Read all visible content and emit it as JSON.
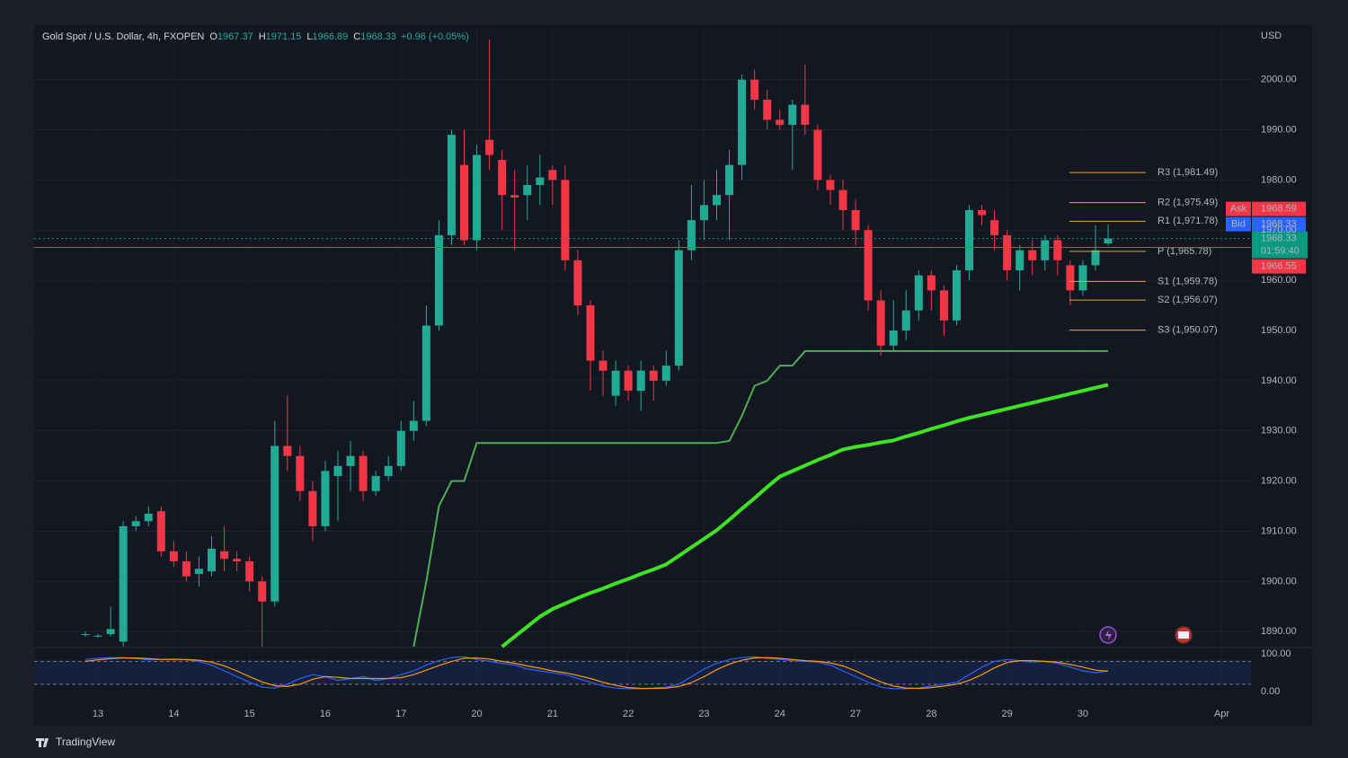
{
  "chart_data": {
    "type": "candlestick",
    "title": "Gold Spot / U.S. Dollar, 4h, FXOPEN",
    "ohlc_header": [
      {
        "label": "O",
        "value": "1967.37"
      },
      {
        "label": "H",
        "value": "1971.15"
      },
      {
        "label": "L",
        "value": "1966.89"
      },
      {
        "label": "C",
        "value": "1968.33"
      }
    ],
    "change": "+0.96 (+0.05%)",
    "currency": "USD",
    "categories": [
      null,
      "13",
      null,
      null,
      null,
      null,
      null,
      "14",
      null,
      null,
      null,
      null,
      null,
      "15",
      null,
      null,
      null,
      null,
      null,
      "16",
      null,
      null,
      null,
      null,
      null,
      "17",
      null,
      null,
      null,
      null,
      null,
      "20",
      null,
      null,
      null,
      null,
      null,
      "21",
      null,
      null,
      null,
      null,
      null,
      "22",
      null,
      null,
      null,
      null,
      null,
      "23",
      null,
      null,
      null,
      null,
      null,
      "24",
      null,
      null,
      null,
      null,
      null,
      "27",
      null,
      null,
      null,
      null,
      null,
      "28",
      null,
      null,
      null,
      null,
      null,
      "29",
      null,
      null,
      null,
      null,
      null,
      "30",
      null,
      null,
      null,
      null,
      null,
      null,
      null,
      null,
      null,
      null,
      "Apr"
    ],
    "open": [
      1889.5,
      1889,
      1889.5,
      1888,
      1911,
      1912,
      1914,
      1906,
      1904,
      1901.5,
      1902,
      1906,
      1904.5,
      1904,
      1900,
      1896,
      1927,
      1925,
      1918,
      1911,
      1921,
      1923,
      1925,
      1918,
      1921,
      1923,
      1930,
      1932,
      1951,
      1969,
      1983,
      1968,
      1988,
      1984,
      1977,
      1977,
      1979,
      1982,
      1980,
      1964,
      1955,
      1944,
      1937,
      1942,
      1938,
      1942,
      1940,
      1943,
      1966,
      1972,
      1975,
      1977,
      1983,
      2000,
      1996,
      1992,
      1991,
      1995,
      1990,
      1980,
      1978,
      1974,
      1970,
      1956,
      1947,
      1950,
      1954,
      1961,
      1958,
      1952,
      1962,
      1974,
      1972,
      1969,
      1962,
      1966,
      1964,
      1968,
      1963,
      1958,
      1963,
      1967.37,
      null,
      null,
      null,
      null,
      null,
      null,
      null,
      null,
      null
    ],
    "high": [
      1890,
      1889.5,
      1895,
      1912,
      1913,
      1915,
      1915,
      1908,
      1906,
      1905,
      1909,
      1911,
      1906,
      1905,
      1901,
      1932,
      1937,
      1927,
      1920,
      1924,
      1926,
      1928,
      1926,
      1922,
      1925,
      1932,
      1936,
      1955,
      1972,
      1990,
      1990,
      1987,
      2008,
      1986,
      1982,
      1983,
      1985,
      1983,
      1983,
      1966,
      1956,
      1946,
      1944,
      1943,
      1944,
      1943,
      1946,
      1968,
      1979,
      1980,
      1982,
      1986,
      2001,
      2002,
      1998,
      1994,
      1996,
      2003,
      1991,
      1981,
      1980,
      1976,
      1971,
      1958,
      1956,
      1958,
      1962,
      1962,
      1959,
      1963,
      1975,
      1975,
      1974,
      1970,
      1967,
      1968,
      1969,
      1969,
      1964,
      1964,
      1971,
      1971.15,
      null,
      null,
      null,
      null,
      null,
      null,
      null,
      null,
      null
    ],
    "low": [
      1889,
      1888.8,
      1889,
      1887,
      1910,
      1911,
      1905,
      1903,
      1900,
      1899,
      1901,
      1902,
      1902,
      1898,
      1887,
      1895,
      1922,
      1916,
      1908,
      1910,
      1912,
      1918,
      1916,
      1917,
      1920,
      1922,
      1928,
      1931,
      1950,
      1967,
      1967,
      1966,
      1982,
      1970,
      1966,
      1972,
      1975,
      1975,
      1962,
      1953,
      1938,
      1937,
      1935,
      1936,
      1934,
      1936,
      1939,
      1942,
      1964,
      1968,
      1972,
      1968,
      1980,
      1994,
      1990,
      1990,
      1982,
      1989,
      1978,
      1975,
      1970,
      1967,
      1954,
      1945,
      1946,
      1948,
      1952,
      1954,
      1949,
      1951,
      1960,
      1971,
      1966,
      1960,
      1958,
      1961,
      1962,
      1961,
      1955,
      1957,
      1962,
      1966.89,
      null,
      null,
      null,
      null,
      null,
      null,
      null,
      null,
      null
    ],
    "close": [
      1889.5,
      1889.2,
      1890.5,
      1911,
      1912,
      1913.5,
      1906,
      1904,
      1901,
      1902.5,
      1906.5,
      1904.5,
      1904,
      1900,
      1896,
      1927,
      1925,
      1918,
      1911,
      1922,
      1923,
      1925,
      1918,
      1921,
      1923,
      1930,
      1932,
      1951,
      1969,
      1989,
      1968,
      1985,
      1985,
      1977,
      1976.5,
      1979,
      1980.5,
      1980,
      1964,
      1955,
      1944,
      1942,
      1942,
      1938,
      1942,
      1940,
      1943,
      1966,
      1972,
      1975,
      1977,
      1983,
      2000,
      1996,
      1992,
      1991,
      1995,
      1991,
      1980,
      1978,
      1974,
      1970,
      1956,
      1947,
      1950,
      1954,
      1961,
      1958,
      1952,
      1962,
      1974,
      1973,
      1969,
      1962,
      1966,
      1964,
      1968,
      1964,
      1958,
      1963,
      1966,
      1968.33,
      null,
      null,
      null,
      null,
      null,
      null,
      null,
      null,
      null
    ],
    "up_color": "#22ab94",
    "down_color": "#f23645",
    "overlays": [
      {
        "color": "#4caf50",
        "width": 2,
        "values": [
          null,
          null,
          null,
          null,
          null,
          null,
          null,
          null,
          null,
          null,
          null,
          null,
          null,
          null,
          null,
          null,
          null,
          null,
          null,
          null,
          null,
          null,
          null,
          null,
          null,
          null,
          1887,
          1900,
          1915,
          1920,
          1920,
          1927.6,
          1927.6,
          1927.6,
          1927.6,
          1927.6,
          1927.6,
          1927.6,
          1927.6,
          1927.6,
          1927.6,
          1927.6,
          1927.6,
          1927.6,
          1927.6,
          1927.6,
          1927.6,
          1927.6,
          1927.6,
          1927.6,
          1927.6,
          1928,
          1933,
          1939,
          1940,
          1943,
          1943,
          1945.9,
          1945.9,
          1945.9,
          1945.9,
          1945.9,
          1945.9,
          1945.9,
          1945.9,
          1945.9,
          1945.9,
          1945.9,
          1945.9,
          1945.9,
          1945.9,
          1945.9,
          1945.9,
          1945.9,
          1945.9,
          1945.9,
          1945.9,
          1945.9,
          1945.9,
          1945.9,
          1945.9,
          1945.9,
          null,
          null,
          null,
          null,
          null,
          null,
          null,
          null,
          null
        ]
      },
      {
        "color": "#3ee41f",
        "width": 4,
        "values": [
          null,
          null,
          null,
          null,
          null,
          null,
          null,
          null,
          null,
          null,
          null,
          null,
          null,
          null,
          null,
          null,
          null,
          null,
          null,
          null,
          null,
          null,
          null,
          null,
          null,
          null,
          null,
          null,
          null,
          null,
          null,
          null,
          null,
          1887,
          1889,
          1891,
          1893,
          1894.5,
          1895.6,
          1896.7,
          1897.7,
          1898.6,
          1899.6,
          1900.5,
          1901.5,
          1902.4,
          1903.4,
          1905.1,
          1906.8,
          1908.5,
          1910.2,
          1912.3,
          1914.5,
          1916.6,
          1918.8,
          1920.9,
          1922,
          1923.1,
          1924.2,
          1925.2,
          1926.3,
          1926.8,
          1927.2,
          1927.7,
          1928.1,
          1928.9,
          1929.6,
          1930.4,
          1931.1,
          1931.9,
          1932.6,
          1933.2,
          1933.8,
          1934.4,
          1935,
          1935.6,
          1936.2,
          1936.8,
          1937.4,
          1938,
          1938.6,
          1939.2,
          null,
          null,
          null,
          null,
          null,
          null,
          null,
          null,
          null
        ]
      }
    ],
    "ylim": [
      1887,
      2010.5
    ],
    "yticks": [
      {
        "value": 1890,
        "label": "1890.00"
      },
      {
        "value": 1900,
        "label": "1900.00"
      },
      {
        "value": 1910,
        "label": "1910.00"
      },
      {
        "value": 1920,
        "label": "1920.00"
      },
      {
        "value": 1930,
        "label": "1930.00"
      },
      {
        "value": 1940,
        "label": "1940.00"
      },
      {
        "value": 1950,
        "label": "1950.00"
      },
      {
        "value": 1960,
        "label": "1960.00"
      },
      {
        "value": 1970,
        "label": "1970.00"
      },
      {
        "value": 1980,
        "label": "1980.00"
      },
      {
        "value": 1990,
        "label": "1990.00"
      },
      {
        "value": 2000,
        "label": "2000.00"
      }
    ],
    "grid": true,
    "pivot_color": "#f0a12b",
    "pivots": [
      {
        "label": "R3 (1,981.49)",
        "value": 1981.49
      },
      {
        "label": "R2 (1,975.49)",
        "value": 1975.49
      },
      {
        "label": "R1 (1,971.78)",
        "value": 1971.78
      },
      {
        "label": "P (1,965.78)",
        "value": 1965.78
      },
      {
        "label": "S1 (1,959.78)",
        "value": 1959.78
      },
      {
        "label": "S2 (1,956.07)",
        "value": 1956.07
      },
      {
        "label": "S3 (1,950.07)",
        "value": 1950.07
      }
    ],
    "price_tags": {
      "ask": {
        "name": "Ask",
        "value": 1968.59,
        "color": "#f23645"
      },
      "bid": {
        "name": "Bid",
        "value": 1968.33,
        "color": "#2962ff"
      },
      "last": {
        "value": 1968.33,
        "countdown": "01:59:40",
        "color": "#089981"
      },
      "line": {
        "value": 1966.55,
        "color": "#f23645"
      }
    },
    "oscillator": {
      "ylim": [
        -4,
        114
      ],
      "yticks": [
        {
          "value": 100,
          "label": "100.00"
        },
        {
          "value": 0,
          "label": "0.00"
        }
      ],
      "levels": [
        80,
        20
      ],
      "series": [
        {
          "color": "#2962ff",
          "values": [
            85,
            88,
            90,
            90,
            87,
            84,
            85,
            86,
            84,
            80,
            70,
            55,
            40,
            25,
            12,
            10,
            20,
            35,
            45,
            40,
            30,
            35,
            40,
            30,
            35,
            45,
            55,
            70,
            82,
            90,
            92,
            85,
            80,
            75,
            70,
            60,
            55,
            50,
            45,
            35,
            25,
            15,
            10,
            8,
            8,
            10,
            12,
            20,
            40,
            60,
            75,
            85,
            90,
            92,
            88,
            85,
            82,
            80,
            78,
            70,
            55,
            40,
            25,
            12,
            8,
            8,
            10,
            15,
            20,
            25,
            45,
            65,
            80,
            85,
            82,
            78,
            80,
            75,
            65,
            55,
            50,
            55,
            null,
            null,
            null,
            null,
            null,
            null,
            null,
            null,
            null
          ]
        },
        {
          "color": "#ff9800",
          "values": [
            80,
            84,
            87,
            89,
            89,
            87,
            85,
            85,
            85,
            83,
            78,
            68,
            55,
            40,
            26,
            16,
            14,
            20,
            33,
            40,
            38,
            35,
            35,
            35,
            35,
            37,
            45,
            57,
            69,
            80,
            88,
            89,
            86,
            80,
            75,
            68,
            62,
            55,
            50,
            43,
            35,
            25,
            17,
            11,
            9,
            9,
            10,
            14,
            24,
            40,
            58,
            73,
            83,
            89,
            90,
            88,
            85,
            82,
            80,
            76,
            68,
            55,
            40,
            26,
            15,
            10,
            9,
            11,
            15,
            20,
            30,
            45,
            63,
            77,
            82,
            82,
            80,
            78,
            72,
            65,
            57,
            54,
            null,
            null,
            null,
            null,
            null,
            null,
            null,
            null,
            null
          ]
        }
      ]
    }
  },
  "footer": {
    "brand": "TradingView"
  }
}
